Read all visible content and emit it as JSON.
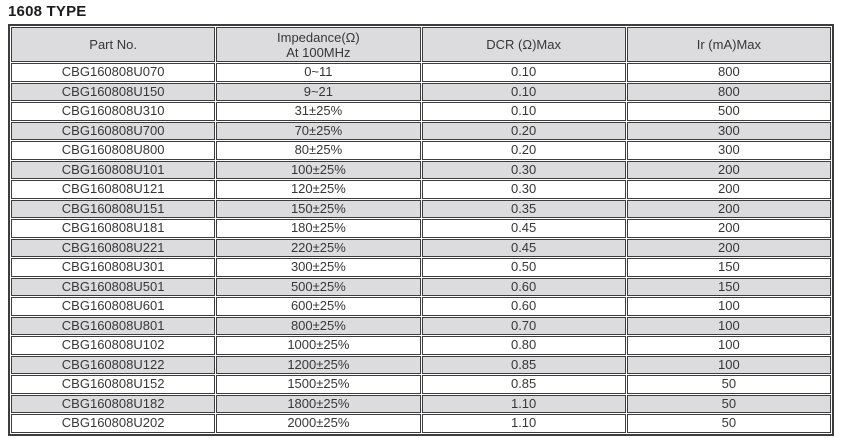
{
  "page_title": "1608 TYPE",
  "colors": {
    "header_bg": "#dcdcde",
    "stripe_bg": "#dcdcde",
    "border": "#3d3d3d",
    "text": "#373737"
  },
  "table": {
    "columns": [
      {
        "label": "Part No.",
        "sublabel": ""
      },
      {
        "label": "Impedance(Ω)",
        "sublabel": "At 100MHz"
      },
      {
        "label": "DCR (Ω)Max",
        "sublabel": ""
      },
      {
        "label": "Ir (mA)Max",
        "sublabel": ""
      }
    ],
    "rows": [
      {
        "part_no": "CBG160808U070",
        "impedance": "0~11",
        "dcr": "0.10",
        "ir": "800"
      },
      {
        "part_no": "CBG160808U150",
        "impedance": "9~21",
        "dcr": "0.10",
        "ir": "800"
      },
      {
        "part_no": "CBG160808U310",
        "impedance": "31±25%",
        "dcr": "0.10",
        "ir": "500"
      },
      {
        "part_no": "CBG160808U700",
        "impedance": "70±25%",
        "dcr": "0.20",
        "ir": "300"
      },
      {
        "part_no": "CBG160808U800",
        "impedance": "80±25%",
        "dcr": "0.20",
        "ir": "300"
      },
      {
        "part_no": "CBG160808U101",
        "impedance": "100±25%",
        "dcr": "0.30",
        "ir": "200"
      },
      {
        "part_no": "CBG160808U121",
        "impedance": "120±25%",
        "dcr": "0.30",
        "ir": "200"
      },
      {
        "part_no": "CBG160808U151",
        "impedance": "150±25%",
        "dcr": "0.35",
        "ir": "200"
      },
      {
        "part_no": "CBG160808U181",
        "impedance": "180±25%",
        "dcr": "0.45",
        "ir": "200"
      },
      {
        "part_no": "CBG160808U221",
        "impedance": "220±25%",
        "dcr": "0.45",
        "ir": "200"
      },
      {
        "part_no": "CBG160808U301",
        "impedance": "300±25%",
        "dcr": "0.50",
        "ir": "150"
      },
      {
        "part_no": "CBG160808U501",
        "impedance": "500±25%",
        "dcr": "0.60",
        "ir": "150"
      },
      {
        "part_no": "CBG160808U601",
        "impedance": "600±25%",
        "dcr": "0.60",
        "ir": "100"
      },
      {
        "part_no": "CBG160808U801",
        "impedance": "800±25%",
        "dcr": "0.70",
        "ir": "100"
      },
      {
        "part_no": "CBG160808U102",
        "impedance": "1000±25%",
        "dcr": "0.80",
        "ir": "100"
      },
      {
        "part_no": "CBG160808U122",
        "impedance": "1200±25%",
        "dcr": "0.85",
        "ir": "100"
      },
      {
        "part_no": "CBG160808U152",
        "impedance": "1500±25%",
        "dcr": "0.85",
        "ir": "50"
      },
      {
        "part_no": "CBG160808U182",
        "impedance": "1800±25%",
        "dcr": "1.10",
        "ir": "50"
      },
      {
        "part_no": "CBG160808U202",
        "impedance": "2000±25%",
        "dcr": "1.10",
        "ir": "50"
      }
    ]
  }
}
